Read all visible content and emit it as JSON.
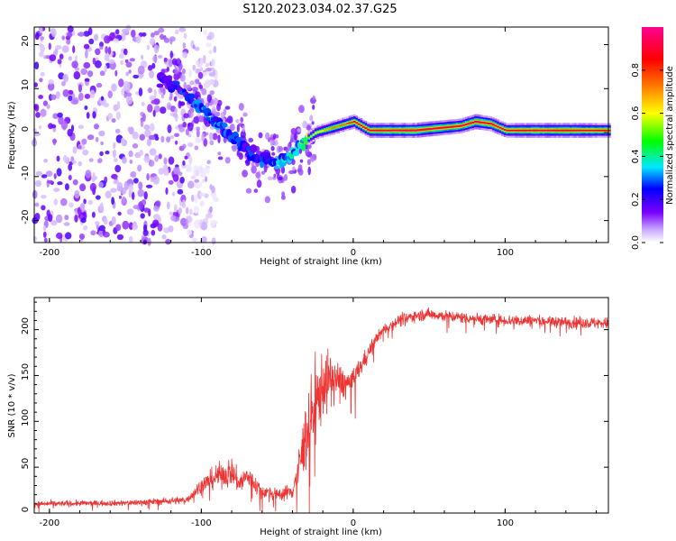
{
  "title": "S120.2023.034.02.37.G25",
  "chart_data": [
    {
      "type": "heatmap",
      "xlabel": "Height of straight line (km)",
      "ylabel": "Frequency (Hz)",
      "xlim": [
        -210,
        168
      ],
      "ylim": [
        -25,
        24
      ],
      "xticks": [
        -200,
        -100,
        0,
        100
      ],
      "yticks": [
        -20,
        -10,
        0,
        10,
        20
      ],
      "colorbar": {
        "label": "Normalized spectral amplitude",
        "range": [
          0.0,
          1.0
        ],
        "ticks": [
          "0.0",
          "0.2",
          "0.4",
          "0.6",
          "0.8"
        ],
        "colors": [
          "#ffffff",
          "#7a00ff",
          "#0000ff",
          "#00e8ff",
          "#00ff00",
          "#ffff00",
          "#ff7f00",
          "#ff0000",
          "#ff0080"
        ]
      },
      "ridge": {
        "x": [
          -125,
          -110,
          -95,
          -80,
          -65,
          -50,
          -40,
          -33,
          -25,
          -15,
          -5,
          0,
          10,
          40,
          70,
          80,
          90,
          100,
          120,
          140,
          168
        ],
        "freq": [
          12,
          9,
          4,
          -1,
          -5,
          -7,
          -5,
          -2,
          0,
          1,
          2,
          2.5,
          0.5,
          0.5,
          1.5,
          2.5,
          2,
          0.5,
          0.5,
          0.5,
          0.5
        ],
        "amplitude": [
          0.2,
          0.25,
          0.3,
          0.25,
          0.25,
          0.3,
          0.35,
          0.5,
          0.6,
          0.7,
          0.75,
          0.85,
          0.9,
          0.95,
          0.9,
          0.95,
          0.9,
          0.85,
          0.9,
          0.9,
          0.85
        ]
      },
      "noise_region": {
        "x_range": [
          -210,
          -110
        ],
        "freq_range": [
          -25,
          24
        ],
        "amplitude": 0.15
      }
    },
    {
      "type": "line",
      "xlabel": "Height of straight line (km)",
      "ylabel": "SNR (10 * v/v)",
      "xlim": [
        -210,
        168
      ],
      "ylim": [
        0,
        235
      ],
      "xticks": [
        -200,
        -100,
        0,
        100
      ],
      "yticks": [
        0,
        50,
        100,
        150,
        200
      ],
      "color": "#ee3333",
      "envelope": {
        "x": [
          -210,
          -150,
          -110,
          -100,
          -90,
          -80,
          -75,
          -70,
          -60,
          -50,
          -40,
          -35,
          -30,
          -25,
          -20,
          -15,
          -10,
          -5,
          0,
          5,
          10,
          15,
          20,
          25,
          30,
          40,
          50,
          60,
          80,
          100,
          120,
          140,
          168
        ],
        "mean": [
          10,
          11,
          14,
          30,
          40,
          45,
          32,
          40,
          24,
          20,
          24,
          55,
          95,
          115,
          140,
          145,
          145,
          140,
          145,
          160,
          175,
          190,
          200,
          205,
          210,
          215,
          217,
          215,
          212,
          210,
          210,
          208,
          207
        ],
        "spread": [
          6,
          6,
          8,
          16,
          24,
          30,
          22,
          26,
          14,
          12,
          18,
          45,
          80,
          85,
          70,
          55,
          40,
          30,
          25,
          20,
          15,
          12,
          12,
          12,
          12,
          12,
          12,
          12,
          12,
          12,
          12,
          12,
          12
        ]
      }
    }
  ]
}
